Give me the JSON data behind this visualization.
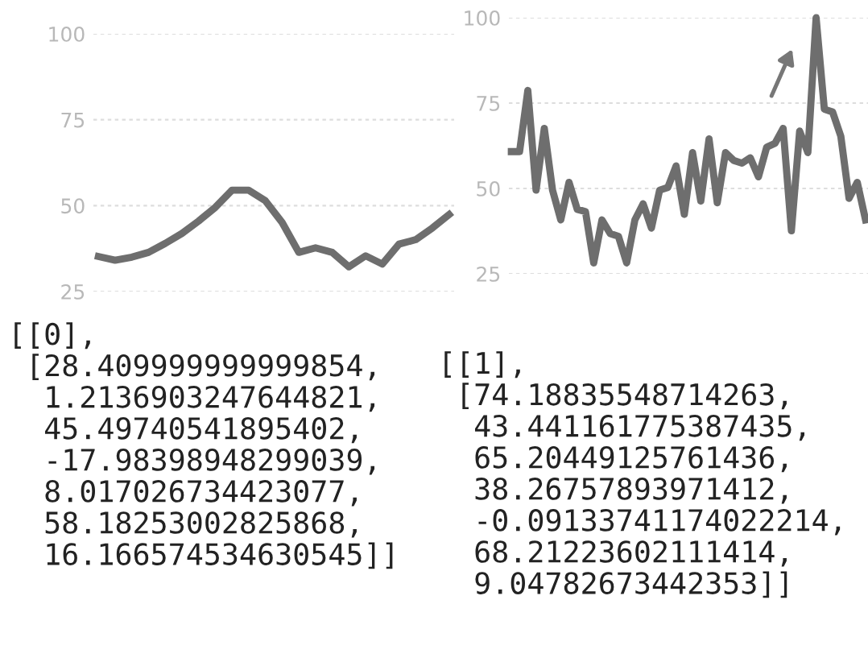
{
  "chart_data": [
    {
      "type": "line",
      "categories": [
        null,
        null,
        null,
        null,
        null,
        null,
        null,
        null,
        null,
        null,
        null,
        null,
        null,
        null,
        null,
        null,
        null,
        null,
        null,
        null,
        null,
        null
      ],
      "series": [
        {
          "color": "#6e6e6e",
          "values": [
            35.2,
            34.1,
            35.0,
            36.4,
            39.0,
            41.9,
            45.5,
            49.5,
            54.5,
            54.5,
            51.4,
            45.1,
            36.4,
            37.7,
            36.4,
            32.2,
            35.4,
            33.0,
            38.8,
            40.1,
            43.5,
            47.4
          ]
        }
      ],
      "ylim": [
        25,
        100
      ],
      "yticks": [
        25,
        50,
        75,
        100
      ],
      "grid": "y",
      "tick_labels": "y",
      "marker": "none",
      "line_style": "solid",
      "annotations": [
        "[[0],\n [28.409999999999854,\n  1.2136903247644821,\n  45.49740541895402,\n  -17.98398948299039,\n  8.017026734423077,\n  58.18253002825868,\n  16.166574534630545]]"
      ]
    },
    {
      "type": "line",
      "categories": [
        null,
        null,
        null,
        null,
        null,
        null,
        null,
        null,
        null,
        null,
        null,
        null,
        null,
        null,
        null,
        null,
        null,
        null,
        null,
        null,
        null,
        null,
        null,
        null,
        null,
        null,
        null,
        null,
        null,
        null,
        null,
        null,
        null,
        null,
        null,
        null,
        null,
        null,
        null,
        null,
        null,
        null,
        null,
        null
      ],
      "series": [
        {
          "color": "#6e6e6e",
          "values": [
            60.8,
            60.8,
            78.7,
            49.5,
            67.6,
            49.5,
            40.8,
            51.8,
            43.9,
            43.2,
            28.2,
            40.8,
            36.8,
            36.0,
            28.2,
            40.8,
            45.5,
            38.4,
            49.5,
            50.3,
            56.6,
            42.4,
            60.5,
            46.3,
            64.5,
            45.8,
            60.5,
            58.2,
            57.4,
            59.0,
            53.4,
            62.1,
            63.2,
            67.6,
            37.6,
            66.8,
            60.5,
            100,
            73.2,
            72.4,
            65.3,
            47.1,
            51.8,
            40.8
          ]
        }
      ],
      "ylim": [
        25,
        100
      ],
      "yticks": [
        25,
        50,
        75,
        100
      ],
      "grid": "y",
      "tick_labels": "y",
      "marker": "none",
      "line_style": "solid",
      "annotations": [
        "[[1],\n [74.18835548714263,\n  43.441161775387435,\n  65.20449125761436,\n  38.26757893971412,\n  -0.09133741174022214,\n  68.21223602111414,\n  9.04782673442353]]"
      ]
    }
  ]
}
